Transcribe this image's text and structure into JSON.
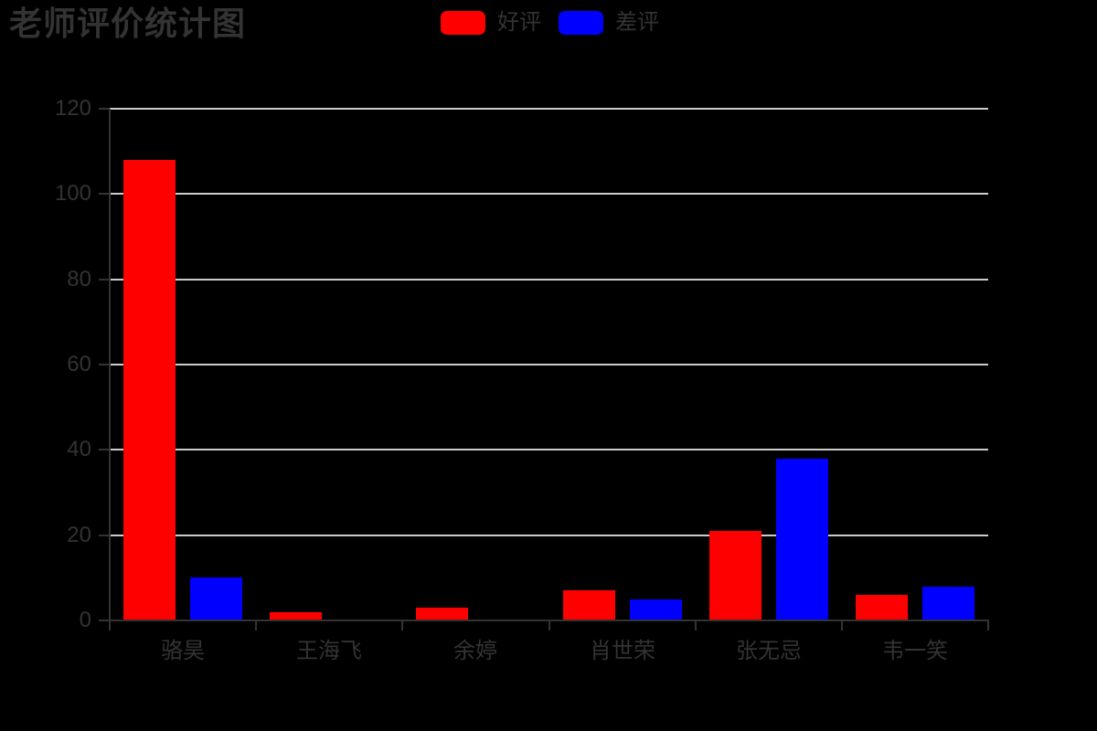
{
  "title": "老师评价统计图",
  "legend": {
    "items": [
      {
        "label": "好评",
        "color": "#ff0000"
      },
      {
        "label": "差评",
        "color": "#0000ff"
      }
    ]
  },
  "chart_data": {
    "type": "bar",
    "title": "老师评价统计图",
    "categories": [
      "骆昊",
      "王海飞",
      "余婷",
      "肖世荣",
      "张无忌",
      "韦一笑"
    ],
    "series": [
      {
        "name": "好评",
        "color": "#ff0000",
        "values": [
          108,
          2,
          3,
          7,
          21,
          6
        ]
      },
      {
        "name": "差评",
        "color": "#0000ff",
        "values": [
          10,
          0,
          0,
          5,
          38,
          8
        ]
      }
    ],
    "xlabel": "",
    "ylabel": "",
    "ylim": [
      0,
      120
    ],
    "yticks": [
      0,
      20,
      40,
      60,
      80,
      100,
      120
    ],
    "grid": true,
    "legend_position": "top-center",
    "colors": {
      "background": "#000000",
      "text": "#333333",
      "axis": "#333333",
      "gridline": "#cccccc"
    }
  }
}
